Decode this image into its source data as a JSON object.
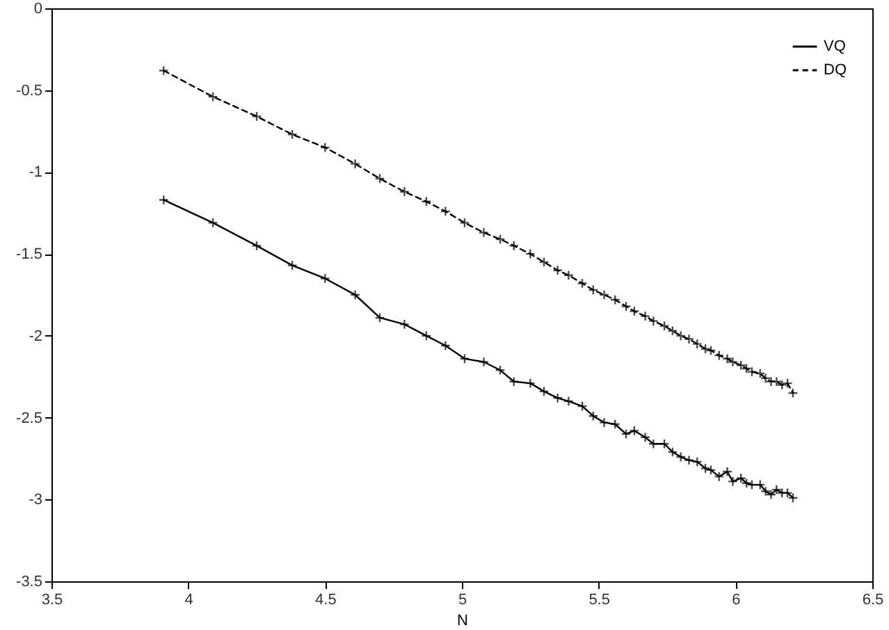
{
  "chart_data": {
    "type": "line",
    "xlabel": "N",
    "xlim": [
      3.5,
      6.5
    ],
    "xticks": [
      3.5,
      4,
      4.5,
      5,
      5.5,
      6,
      6.5
    ],
    "ylim": [
      -3.5,
      0
    ],
    "yticks": [
      -3.5,
      -3,
      -2.5,
      -2,
      -1.5,
      -1,
      -0.5,
      0
    ],
    "grid": false,
    "legend": "top right",
    "marker": "cross",
    "x": [
      3.91,
      4.09,
      4.25,
      4.38,
      4.5,
      4.61,
      4.7,
      4.79,
      4.87,
      4.94,
      5.01,
      5.08,
      5.14,
      5.19,
      5.25,
      5.3,
      5.35,
      5.39,
      5.44,
      5.48,
      5.52,
      5.56,
      5.6,
      5.63,
      5.67,
      5.7,
      5.74,
      5.77,
      5.8,
      5.83,
      5.86,
      5.89,
      5.91,
      5.94,
      5.97,
      5.99,
      6.02,
      6.04,
      6.06,
      6.09,
      6.11,
      6.13,
      6.15,
      6.17,
      6.19,
      6.21
    ],
    "series": [
      {
        "name": "VQ",
        "color": "#000000",
        "line_style": "solid",
        "values": [
          -1.17,
          -1.31,
          -1.45,
          -1.57,
          -1.65,
          -1.75,
          -1.89,
          -1.93,
          -2.0,
          -2.06,
          -2.14,
          -2.16,
          -2.21,
          -2.28,
          -2.29,
          -2.34,
          -2.38,
          -2.4,
          -2.43,
          -2.49,
          -2.53,
          -2.54,
          -2.6,
          -2.58,
          -2.62,
          -2.66,
          -2.66,
          -2.71,
          -2.74,
          -2.76,
          -2.77,
          -2.81,
          -2.82,
          -2.86,
          -2.83,
          -2.89,
          -2.87,
          -2.9,
          -2.91,
          -2.91,
          -2.95,
          -2.97,
          -2.94,
          -2.96,
          -2.96,
          -2.99
        ]
      },
      {
        "name": "DQ",
        "color": "#000000",
        "line_style": "dashed",
        "values": [
          -0.38,
          -0.54,
          -0.66,
          -0.77,
          -0.85,
          -0.95,
          -1.04,
          -1.12,
          -1.18,
          -1.24,
          -1.31,
          -1.37,
          -1.41,
          -1.45,
          -1.5,
          -1.55,
          -1.6,
          -1.63,
          -1.68,
          -1.72,
          -1.75,
          -1.78,
          -1.82,
          -1.85,
          -1.88,
          -1.91,
          -1.94,
          -1.97,
          -2.0,
          -2.02,
          -2.05,
          -2.08,
          -2.09,
          -2.12,
          -2.14,
          -2.16,
          -2.18,
          -2.2,
          -2.22,
          -2.23,
          -2.26,
          -2.28,
          -2.28,
          -2.3,
          -2.29,
          -2.35
        ]
      }
    ]
  }
}
